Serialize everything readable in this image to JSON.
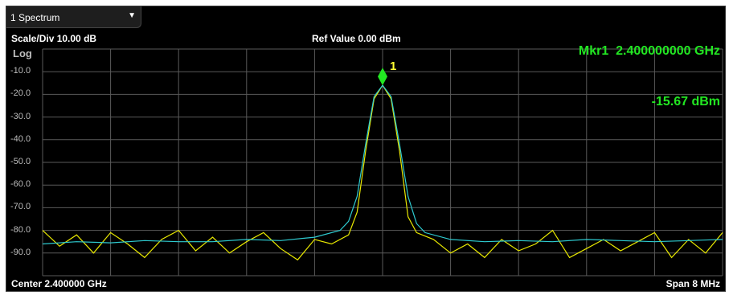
{
  "window": {
    "dropdown_label": "1 Spectrum",
    "scale_div": "Scale/Div 10.00 dB",
    "ref_value": "Ref Value 0.00 dBm",
    "log_label": "Log",
    "center": "Center 2.400000 GHz",
    "span": "Span 8 MHz"
  },
  "marker": {
    "number": "1",
    "readout_freq": "Mkr1  2.400000000 GHz",
    "readout_level": "-15.67 dBm",
    "freq_mhz": 2400.0,
    "level_dbm": -15.67
  },
  "colors": {
    "background": "#000000",
    "grid": "#5a5a5a",
    "trace_yellow": "#e8e800",
    "trace_cyan": "#2ecbd0",
    "marker": "#22e622",
    "marker_number": "#ffff33"
  },
  "chart_data": {
    "type": "line",
    "xlabel": "",
    "ylabel": "",
    "x_unit": "MHz",
    "xlim": [
      2396.0,
      2404.0
    ],
    "ylim": [
      -100.0,
      0.0
    ],
    "ytick_labels": [
      "-10.0",
      "-20.0",
      "-30.0",
      "-40.0",
      "-50.0",
      "-60.0",
      "-70.0",
      "-80.0",
      "-90.0"
    ],
    "grid": true,
    "series": [
      {
        "color": "#e8e800",
        "x": [
          2396.0,
          2396.2,
          2396.4,
          2396.6,
          2396.8,
          2397.0,
          2397.2,
          2397.4,
          2397.6,
          2397.8,
          2398.0,
          2398.2,
          2398.4,
          2398.6,
          2398.8,
          2399.0,
          2399.2,
          2399.4,
          2399.6,
          2399.7,
          2399.8,
          2399.9,
          2400.0,
          2400.1,
          2400.2,
          2400.3,
          2400.4,
          2400.6,
          2400.8,
          2401.0,
          2401.2,
          2401.4,
          2401.6,
          2401.8,
          2402.0,
          2402.2,
          2402.4,
          2402.6,
          2402.8,
          2403.0,
          2403.2,
          2403.4,
          2403.6,
          2403.8,
          2404.0
        ],
        "values": [
          -80,
          -87,
          -82,
          -90,
          -81,
          -86,
          -92,
          -84,
          -80,
          -89,
          -83,
          -90,
          -85,
          -81,
          -88,
          -93,
          -84,
          -86,
          -82,
          -72,
          -45,
          -22,
          -16,
          -22,
          -45,
          -74,
          -81,
          -84,
          -90,
          -86,
          -92,
          -84,
          -89,
          -86,
          -80,
          -92,
          -88,
          -84,
          -89,
          -85,
          -81,
          -92,
          -84,
          -90,
          -81
        ]
      },
      {
        "color": "#2ecbd0",
        "x": [
          2396.0,
          2396.4,
          2396.8,
          2397.2,
          2397.6,
          2398.0,
          2398.4,
          2398.8,
          2399.2,
          2399.5,
          2399.6,
          2399.7,
          2399.8,
          2399.9,
          2400.0,
          2400.1,
          2400.2,
          2400.3,
          2400.4,
          2400.5,
          2400.8,
          2401.2,
          2401.6,
          2402.0,
          2402.4,
          2402.8,
          2403.2,
          2403.6,
          2404.0
        ],
        "values": [
          -86,
          -85,
          -85.5,
          -84.5,
          -85,
          -85,
          -84,
          -84.5,
          -83,
          -80,
          -76,
          -65,
          -42,
          -21,
          -16,
          -21,
          -42,
          -65,
          -77,
          -81,
          -84,
          -85,
          -84.5,
          -85,
          -84,
          -84.5,
          -85,
          -84.5,
          -84
        ]
      }
    ]
  }
}
